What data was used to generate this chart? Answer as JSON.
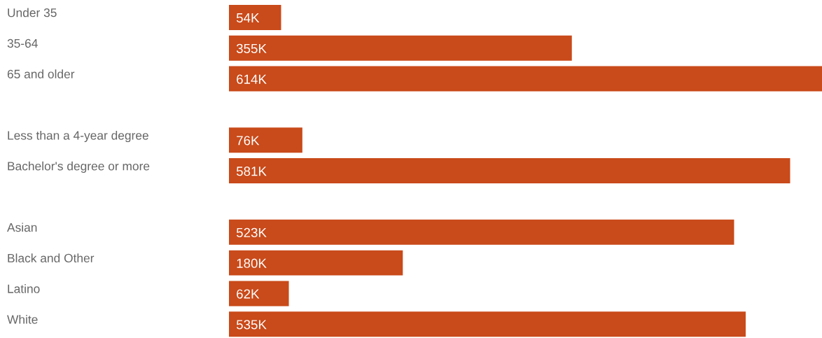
{
  "chart_data": {
    "type": "bar",
    "orientation": "horizontal",
    "categories": [
      "Under 35",
      "35-64",
      "65 and older",
      null,
      "Less than a 4-year degree",
      "Bachelor's degree or more",
      null,
      "Asian",
      "Black and Other",
      "Latino",
      "White"
    ],
    "values": [
      54,
      355,
      614,
      null,
      76,
      581,
      null,
      523,
      180,
      62,
      535
    ],
    "value_labels": [
      "54K",
      "355K",
      "614K",
      null,
      "76K",
      "581K",
      null,
      "523K",
      "180K",
      "62K",
      "535K"
    ],
    "color": "#c94a1a",
    "xlim": [
      0,
      614
    ]
  }
}
